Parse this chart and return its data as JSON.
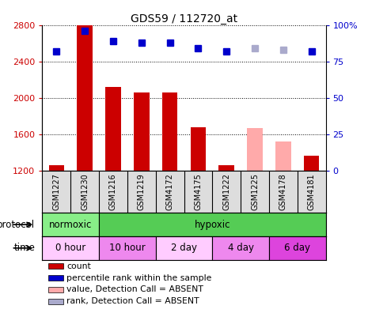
{
  "title": "GDS59 / 112720_at",
  "samples": [
    "GSM1227",
    "GSM1230",
    "GSM1216",
    "GSM1219",
    "GSM4172",
    "GSM4175",
    "GSM1222",
    "GSM1225",
    "GSM4178",
    "GSM4181"
  ],
  "counts": [
    1260,
    2800,
    2120,
    2060,
    2060,
    1680,
    1260,
    null,
    null,
    1360
  ],
  "counts_absent": [
    null,
    null,
    null,
    null,
    null,
    null,
    null,
    1670,
    1520,
    null
  ],
  "ranks": [
    82,
    96,
    89,
    88,
    88,
    84,
    82,
    null,
    null,
    82
  ],
  "ranks_absent": [
    null,
    null,
    null,
    null,
    null,
    null,
    null,
    84,
    83,
    null
  ],
  "bar_color": "#cc0000",
  "bar_absent_color": "#ffaaaa",
  "rank_color": "#0000cc",
  "rank_absent_color": "#aaaacc",
  "ylim_left": [
    1200,
    2800
  ],
  "ylim_right": [
    0,
    100
  ],
  "yticks_left": [
    1200,
    1600,
    2000,
    2400,
    2800
  ],
  "yticks_right": [
    0,
    25,
    50,
    75,
    100
  ],
  "protocol_row": [
    {
      "label": "normoxic",
      "start": 0,
      "end": 2,
      "color": "#88ee88"
    },
    {
      "label": "hypoxic",
      "start": 2,
      "end": 10,
      "color": "#55cc55"
    }
  ],
  "time_row": [
    {
      "label": "0 hour",
      "start": 0,
      "end": 2,
      "color": "#ffccff"
    },
    {
      "label": "10 hour",
      "start": 2,
      "end": 4,
      "color": "#ee88ee"
    },
    {
      "label": "2 day",
      "start": 4,
      "end": 6,
      "color": "#ffccff"
    },
    {
      "label": "4 day",
      "start": 6,
      "end": 8,
      "color": "#ee88ee"
    },
    {
      "label": "6 day",
      "start": 8,
      "end": 10,
      "color": "#dd44dd"
    }
  ],
  "sample_bg_color": "#dddddd",
  "protocol_label": "protocol",
  "time_label": "time",
  "legend_items": [
    {
      "label": "count",
      "color": "#cc0000"
    },
    {
      "label": "percentile rank within the sample",
      "color": "#0000cc"
    },
    {
      "label": "value, Detection Call = ABSENT",
      "color": "#ffaaaa"
    },
    {
      "label": "rank, Detection Call = ABSENT",
      "color": "#aaaacc"
    }
  ]
}
